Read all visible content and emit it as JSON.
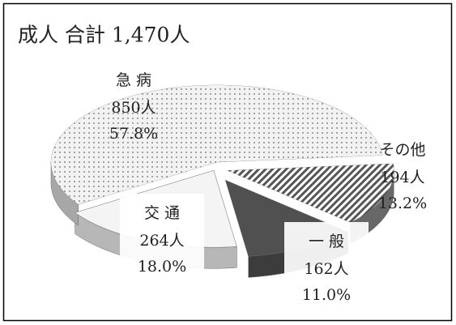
{
  "chart_data": {
    "type": "pie3d",
    "title": "成人 合計 1,470人",
    "categories": [
      "その他",
      "一 般",
      "交 通",
      "急 病"
    ],
    "values": [
      194,
      162,
      264,
      850
    ],
    "value_labels": [
      "194人",
      "162人",
      "264人",
      "850人"
    ],
    "percent_labels": [
      "13.2%",
      "11.0%",
      "18.0%",
      "57.8%"
    ],
    "colors": [
      "#8a8a8a",
      "#505050",
      "#f4f4f4",
      "#dedede"
    ]
  }
}
